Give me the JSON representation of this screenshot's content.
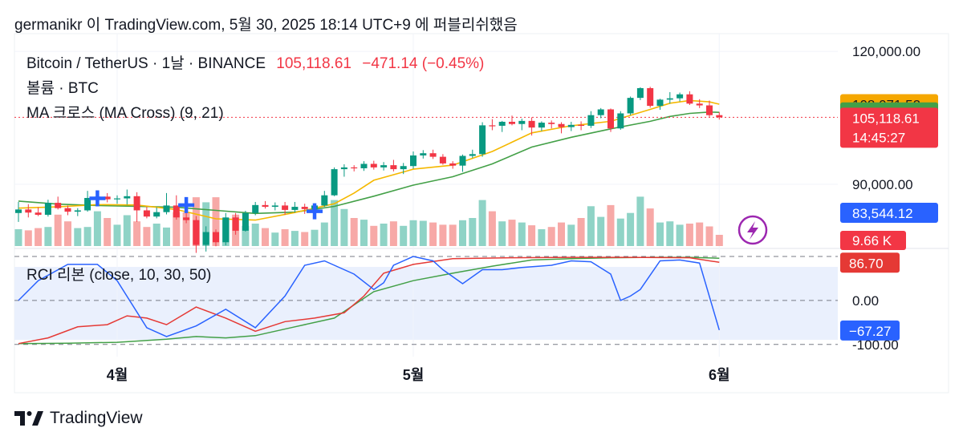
{
  "header": {
    "text": "germanikr 이 TradingView.com, 5월 30, 2025 18:14 UTC+9 에 퍼블리쉬했음"
  },
  "legend": {
    "symbol": "Bitcoin / TetherUS · 1날 · BINANCE",
    "last": "105,118.61",
    "change": "−471.14 (−0.45%)",
    "volume": "볼륨 · BTC",
    "ma": "MA 크로스 (MA Cross) (9, 21)",
    "rci": "RCI 리본 (close, 10, 30, 50)"
  },
  "footer": {
    "brand": "TradingView"
  },
  "colors": {
    "up": "#089981",
    "down": "#f23645",
    "vol_up": "#8fd3c6",
    "vol_down": "#f7a9a7",
    "ma_fast": "#f5b800",
    "ma_slow": "#43a047",
    "rci_short": "#2962ff",
    "rci_mid": "#e53935",
    "rci_long": "#43a047",
    "cross": "#2962ff"
  },
  "chart_data": {
    "type": "candlestick",
    "price_axis": {
      "ticks": [
        {
          "value": 120000,
          "label": "120,000.00"
        },
        {
          "value": 90000,
          "label": "90,000.00"
        }
      ],
      "range": [
        75500,
        124000
      ]
    },
    "price_labels": [
      {
        "value": 108071.52,
        "label": "108,071.52",
        "color": "#f5a700",
        "text_color": "#131722"
      },
      {
        "value": 106230.97,
        "label": "106,230.97",
        "color": "#43a047",
        "text_color": "#ffffff"
      },
      {
        "value": 105118.61,
        "label": "105,118.61",
        "sub": "14:45:27",
        "color": "#f23645",
        "text_color": "#ffffff"
      },
      {
        "value": 83544.12,
        "label": "83,544.12",
        "color": "#2962ff",
        "text_color": "#ffffff"
      }
    ],
    "volume_label": {
      "label": "9.66 K",
      "color": "#f23645"
    },
    "last_price": 105118.61,
    "x_axis": [
      {
        "label": "4월",
        "index": 10
      },
      {
        "label": "5월",
        "index": 40
      },
      {
        "label": "6월",
        "index": 71
      }
    ],
    "candles": [
      [
        83500,
        86000,
        81500,
        84300
      ],
      [
        84300,
        85500,
        82500,
        83600
      ],
      [
        83600,
        84800,
        82800,
        83100
      ],
      [
        83100,
        86500,
        82700,
        85800
      ],
      [
        85800,
        87200,
        84300,
        84600
      ],
      [
        84600,
        85200,
        83000,
        83800
      ],
      [
        83800,
        84600,
        82800,
        84100
      ],
      [
        84100,
        88500,
        83800,
        86900
      ],
      [
        86900,
        87800,
        86300,
        87200
      ],
      [
        87200,
        88000,
        85900,
        86600
      ],
      [
        86600,
        87500,
        85600,
        86800
      ],
      [
        86800,
        88800,
        85400,
        87300
      ],
      [
        87300,
        88200,
        81500,
        84100
      ],
      [
        84100,
        84900,
        82300,
        82700
      ],
      [
        82700,
        84800,
        82300,
        83700
      ],
      [
        83700,
        88000,
        83200,
        85200
      ],
      [
        85200,
        87500,
        82000,
        82500
      ],
      [
        82500,
        83500,
        81200,
        81900
      ],
      [
        81900,
        82800,
        74500,
        76300
      ],
      [
        76300,
        80500,
        74800,
        79200
      ],
      [
        79200,
        79800,
        76000,
        76900
      ],
      [
        76900,
        83500,
        76200,
        82500
      ],
      [
        82500,
        83500,
        78600,
        79500
      ],
      [
        79500,
        84000,
        79300,
        83500
      ],
      [
        83500,
        86000,
        83000,
        85300
      ],
      [
        85300,
        86200,
        84500,
        84900
      ],
      [
        84900,
        85900,
        84100,
        85200
      ],
      [
        85200,
        86000,
        83100,
        84200
      ],
      [
        84200,
        86000,
        83600,
        84900
      ],
      [
        84900,
        85600,
        83300,
        84400
      ],
      [
        84400,
        85700,
        83900,
        85200
      ],
      [
        85200,
        88500,
        84900,
        87500
      ],
      [
        87500,
        93800,
        87300,
        93400
      ],
      [
        93400,
        94500,
        91700,
        93800
      ],
      [
        93800,
        94300,
        92900,
        93600
      ],
      [
        93600,
        95200,
        93000,
        94600
      ],
      [
        94600,
        95300,
        93300,
        93800
      ],
      [
        93800,
        95000,
        93100,
        94300
      ],
      [
        94300,
        95500,
        92900,
        93400
      ],
      [
        93400,
        94800,
        92300,
        94100
      ],
      [
        94100,
        97400,
        93500,
        96500
      ],
      [
        96500,
        97700,
        95800,
        97000
      ],
      [
        97000,
        97800,
        95700,
        96200
      ],
      [
        96200,
        96800,
        94400,
        94700
      ],
      [
        94700,
        95200,
        93500,
        94200
      ],
      [
        94200,
        96700,
        92800,
        96400
      ],
      [
        96400,
        97800,
        95900,
        96800
      ],
      [
        96800,
        104000,
        96200,
        103300
      ],
      [
        103300,
        104700,
        102200,
        103200
      ],
      [
        103200,
        104300,
        101800,
        104100
      ],
      [
        104100,
        105500,
        103300,
        103600
      ],
      [
        103600,
        104800,
        102200,
        104300
      ],
      [
        104300,
        105100,
        101000,
        102800
      ],
      [
        102800,
        104200,
        102000,
        103900
      ],
      [
        103900,
        104400,
        102600,
        103600
      ],
      [
        103600,
        104000,
        101500,
        102900
      ],
      [
        102900,
        104100,
        102000,
        103400
      ],
      [
        103400,
        104200,
        102200,
        103200
      ],
      [
        103200,
        106500,
        102700,
        105600
      ],
      [
        105600,
        107200,
        104900,
        106900
      ],
      [
        106900,
        107100,
        101800,
        102600
      ],
      [
        102600,
        106500,
        102300,
        106000
      ],
      [
        106000,
        109800,
        105600,
        109500
      ],
      [
        109500,
        111900,
        109000,
        111700
      ],
      [
        111700,
        112000,
        107300,
        107700
      ],
      [
        107700,
        109300,
        106800,
        109100
      ],
      [
        109100,
        110800,
        108200,
        109400
      ],
      [
        109400,
        110700,
        108700,
        110300
      ],
      [
        110300,
        111000,
        107900,
        108200
      ],
      [
        108200,
        109200,
        107200,
        107800
      ],
      [
        107800,
        108900,
        105200,
        105600
      ],
      [
        105600,
        106300,
        104600,
        105100
      ]
    ],
    "ma_fast": [
      [
        0,
        84600
      ],
      [
        4,
        84900
      ],
      [
        8,
        85400
      ],
      [
        12,
        85300
      ],
      [
        16,
        84300
      ],
      [
        20,
        82200
      ],
      [
        24,
        81900
      ],
      [
        28,
        83600
      ],
      [
        32,
        85600
      ],
      [
        34,
        88000
      ],
      [
        36,
        90900
      ],
      [
        40,
        93400
      ],
      [
        44,
        94300
      ],
      [
        48,
        97400
      ],
      [
        52,
        101600
      ],
      [
        56,
        103200
      ],
      [
        60,
        104200
      ],
      [
        64,
        106900
      ],
      [
        66,
        108300
      ],
      [
        68,
        108900
      ],
      [
        70,
        108600
      ],
      [
        71,
        108071.52
      ]
    ],
    "ma_slow": [
      [
        0,
        86200
      ],
      [
        4,
        85500
      ],
      [
        8,
        85200
      ],
      [
        12,
        85000
      ],
      [
        16,
        84800
      ],
      [
        20,
        84100
      ],
      [
        24,
        83400
      ],
      [
        28,
        83700
      ],
      [
        32,
        85000
      ],
      [
        36,
        87300
      ],
      [
        40,
        89800
      ],
      [
        44,
        91700
      ],
      [
        48,
        94600
      ],
      [
        52,
        98400
      ],
      [
        56,
        100600
      ],
      [
        60,
        102500
      ],
      [
        64,
        104200
      ],
      [
        66,
        105300
      ],
      [
        68,
        106000
      ],
      [
        70,
        106300
      ],
      [
        71,
        106230.97
      ]
    ],
    "crosses": [
      {
        "index": 8,
        "value": 86800
      },
      {
        "index": 17,
        "value": 85300
      },
      {
        "index": 30,
        "value": 83900
      }
    ],
    "volume": [
      0.3,
      0.28,
      0.32,
      0.34,
      0.56,
      0.44,
      0.32,
      0.34,
      0.62,
      0.5,
      0.38,
      0.55,
      0.44,
      0.34,
      0.4,
      0.33,
      0.6,
      0.6,
      0.87,
      0.78,
      0.87,
      0.5,
      0.56,
      0.36,
      0.4,
      0.32,
      0.24,
      0.3,
      0.27,
      0.25,
      0.29,
      0.42,
      0.82,
      0.66,
      0.5,
      0.47,
      0.36,
      0.4,
      0.44,
      0.36,
      0.46,
      0.45,
      0.42,
      0.38,
      0.38,
      0.46,
      0.5,
      0.82,
      0.62,
      0.44,
      0.47,
      0.42,
      0.37,
      0.3,
      0.34,
      0.42,
      0.38,
      0.5,
      0.71,
      0.52,
      0.73,
      0.49,
      0.59,
      0.88,
      0.67,
      0.42,
      0.44,
      0.38,
      0.4,
      0.42,
      0.35,
      0.2
    ],
    "rci": {
      "axis": [
        {
          "value": 0,
          "label": "0.00"
        },
        {
          "value": -100,
          "label": "-100.00"
        }
      ],
      "range": [
        -104,
        100
      ],
      "labels": [
        {
          "value": 86.7,
          "label": "86.70",
          "color": "#e53935"
        },
        {
          "value": -67.27,
          "label": "−67.27",
          "color": "#2962ff"
        }
      ],
      "short": [
        [
          0,
          0
        ],
        [
          2,
          45
        ],
        [
          5,
          82
        ],
        [
          8,
          82
        ],
        [
          10,
          45
        ],
        [
          13,
          -62
        ],
        [
          15,
          -82
        ],
        [
          18,
          -58
        ],
        [
          21,
          -20
        ],
        [
          24,
          -62
        ],
        [
          27,
          10
        ],
        [
          29,
          80
        ],
        [
          31,
          90
        ],
        [
          34,
          60
        ],
        [
          36,
          25
        ],
        [
          37,
          40
        ],
        [
          38,
          80
        ],
        [
          40,
          100
        ],
        [
          42,
          90
        ],
        [
          43,
          70
        ],
        [
          45,
          38
        ],
        [
          47,
          70
        ],
        [
          49,
          70
        ],
        [
          51,
          75
        ],
        [
          54,
          80
        ],
        [
          56,
          90
        ],
        [
          58,
          88
        ],
        [
          60,
          60
        ],
        [
          61,
          0
        ],
        [
          62,
          10
        ],
        [
          63,
          25
        ],
        [
          65,
          90
        ],
        [
          67,
          92
        ],
        [
          69,
          85
        ],
        [
          71,
          -67.27
        ]
      ],
      "mid": [
        [
          0,
          -98
        ],
        [
          3,
          -85
        ],
        [
          6,
          -60
        ],
        [
          9,
          -55
        ],
        [
          11,
          -35
        ],
        [
          13,
          -40
        ],
        [
          15,
          -55
        ],
        [
          18,
          -15
        ],
        [
          21,
          -40
        ],
        [
          24,
          -70
        ],
        [
          27,
          -48
        ],
        [
          30,
          -40
        ],
        [
          33,
          -28
        ],
        [
          35,
          10
        ],
        [
          37,
          62
        ],
        [
          40,
          82
        ],
        [
          44,
          95
        ],
        [
          50,
          97
        ],
        [
          56,
          98
        ],
        [
          62,
          98
        ],
        [
          68,
          97
        ],
        [
          71,
          86.7
        ]
      ],
      "long": [
        [
          0,
          -98
        ],
        [
          5,
          -97
        ],
        [
          10,
          -95
        ],
        [
          15,
          -88
        ],
        [
          18,
          -82
        ],
        [
          21,
          -85
        ],
        [
          24,
          -80
        ],
        [
          28,
          -60
        ],
        [
          32,
          -40
        ],
        [
          36,
          20
        ],
        [
          40,
          45
        ],
        [
          44,
          62
        ],
        [
          48,
          78
        ],
        [
          52,
          92
        ],
        [
          56,
          95
        ],
        [
          60,
          97
        ],
        [
          64,
          98
        ],
        [
          68,
          98
        ],
        [
          71,
          96
        ]
      ]
    }
  }
}
